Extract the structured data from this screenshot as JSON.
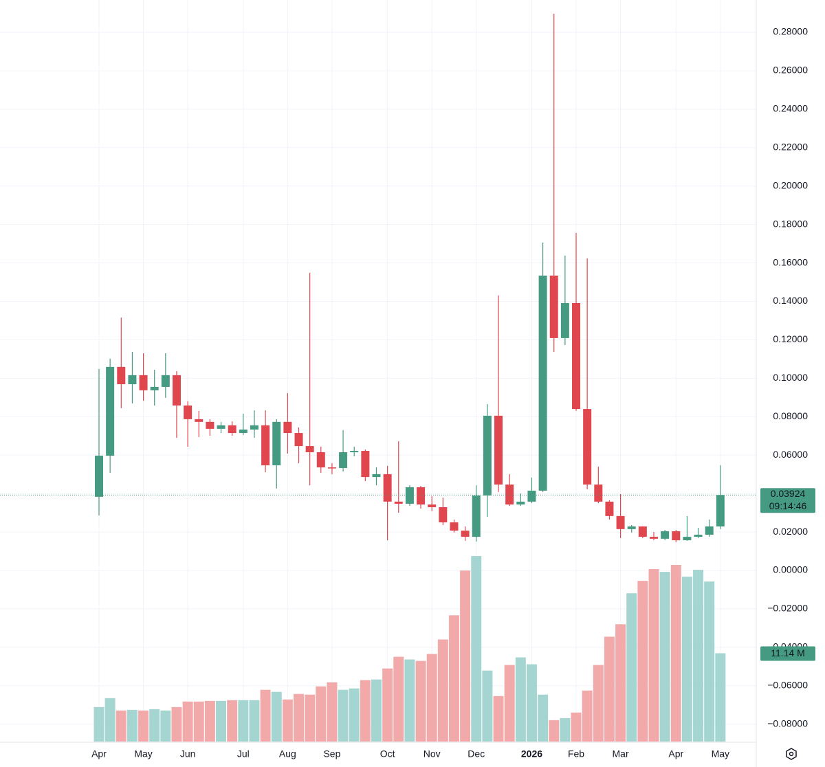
{
  "chart_data": {
    "type": "candlestick",
    "categories": [
      "Apr",
      null,
      null,
      null,
      "May",
      null,
      null,
      null,
      "Jun",
      null,
      null,
      null,
      null,
      "Jul",
      null,
      null,
      null,
      "Aug",
      null,
      null,
      null,
      "Sep",
      null,
      null,
      null,
      null,
      "Oct",
      null,
      null,
      null,
      "Nov",
      null,
      null,
      null,
      "Dec",
      null,
      null,
      null,
      null,
      "2026",
      null,
      null,
      null,
      "Feb",
      null,
      null,
      null,
      "Mar",
      null,
      null,
      null,
      null,
      "Apr",
      null,
      null,
      null,
      "May"
    ],
    "open": [
      0.0383,
      0.0597,
      0.1059,
      0.0969,
      0.1016,
      0.0937,
      0.0955,
      0.1016,
      0.0858,
      0.0787,
      0.0773,
      0.0737,
      0.0755,
      0.0715,
      0.0733,
      0.0755,
      0.0547,
      0.0773,
      0.0715,
      0.0647,
      0.0615,
      0.0536,
      0.0533,
      0.0615,
      0.0622,
      0.0486,
      0.0501,
      0.0358,
      0.0347,
      0.0433,
      0.0343,
      0.0329,
      0.025,
      0.0207,
      0.0175,
      0.039,
      0.0805,
      0.0447,
      0.0343,
      0.0358,
      0.0415,
      0.1534,
      0.1209,
      0.1391,
      0.084,
      0.0447,
      0.0358,
      0.0283,
      0.0215,
      0.0229,
      0.0175,
      0.0165,
      0.0204,
      0.0157,
      0.0175,
      0.0186,
      0.0229
    ],
    "high": [
      0.1048,
      0.1102,
      0.1316,
      0.1137,
      0.113,
      0.1044,
      0.113,
      0.1037,
      0.088,
      0.083,
      0.0787,
      0.0773,
      0.0776,
      0.0815,
      0.0833,
      0.0833,
      0.0787,
      0.0923,
      0.0744,
      0.1549,
      0.0644,
      0.0558,
      0.073,
      0.0644,
      0.0629,
      0.0536,
      0.0544,
      0.0672,
      0.0443,
      0.044,
      0.0386,
      0.0379,
      0.0265,
      0.0229,
      0.0443,
      0.0866,
      0.1431,
      0.0501,
      0.0401,
      0.0483,
      0.1706,
      0.2897,
      0.1638,
      0.1756,
      0.1624,
      0.054,
      0.0365,
      0.0397,
      0.0236,
      0.0229,
      0.02,
      0.0211,
      0.0211,
      0.0283,
      0.0222,
      0.0265,
      0.0547
    ],
    "low": [
      0.0286,
      0.0508,
      0.0844,
      0.0869,
      0.0883,
      0.0858,
      0.0898,
      0.069,
      0.0644,
      0.0694,
      0.0701,
      0.0715,
      0.0701,
      0.0705,
      0.069,
      0.0511,
      0.0426,
      0.0608,
      0.0558,
      0.0443,
      0.0508,
      0.0501,
      0.0515,
      0.0594,
      0.0465,
      0.0443,
      0.0157,
      0.03,
      0.0336,
      0.0322,
      0.0308,
      0.0236,
      0.0197,
      0.0154,
      0.015,
      0.0279,
      0.0408,
      0.0336,
      0.0336,
      0.035,
      0.0408,
      0.1137,
      0.1173,
      0.083,
      0.0422,
      0.035,
      0.0265,
      0.0168,
      0.0197,
      0.0168,
      0.0157,
      0.0157,
      0.0147,
      0.0154,
      0.0168,
      0.0175,
      0.0215
    ],
    "close": [
      0.0597,
      0.1059,
      0.0969,
      0.1016,
      0.0937,
      0.0955,
      0.1016,
      0.0858,
      0.0787,
      0.0773,
      0.0737,
      0.0755,
      0.0715,
      0.0733,
      0.0755,
      0.0547,
      0.0773,
      0.0715,
      0.0647,
      0.0615,
      0.0536,
      0.0533,
      0.0615,
      0.0622,
      0.0486,
      0.0501,
      0.0358,
      0.0347,
      0.0433,
      0.0343,
      0.0329,
      0.025,
      0.0207,
      0.0175,
      0.039,
      0.0805,
      0.0447,
      0.0343,
      0.0358,
      0.0415,
      0.1534,
      0.1209,
      0.1391,
      0.084,
      0.0447,
      0.0358,
      0.0283,
      0.0215,
      0.0229,
      0.0175,
      0.0165,
      0.0204,
      0.0157,
      0.0175,
      0.0186,
      0.0229,
      0.03924
    ],
    "volume": {
      "values": [
        4.35,
        5.48,
        3.92,
        4.0,
        3.92,
        4.09,
        3.92,
        4.35,
        5.05,
        5.05,
        5.13,
        5.13,
        5.22,
        5.22,
        5.22,
        6.53,
        6.27,
        5.31,
        6.01,
        5.92,
        6.96,
        7.48,
        6.53,
        6.7,
        7.75,
        7.83,
        9.22,
        10.7,
        10.36,
        10.18,
        11.05,
        12.88,
        15.93,
        21.58,
        23.41,
        8.96,
        5.74,
        9.66,
        10.62,
        9.75,
        5.92,
        2.7,
        2.96,
        3.66,
        6.44,
        9.66,
        13.23,
        14.8,
        18.71,
        20.28,
        21.76,
        21.41,
        22.28,
        20.8,
        21.67,
        20.19,
        11.14
      ],
      "last_label": "11.14 M",
      "up_color": "#a5d5d0",
      "down_color": "#f1aaa9"
    },
    "countdown": "09:14:46",
    "up_color": "#459a82",
    "down_color": "#e0464e",
    "ylim": [
      -0.0894,
      0.2968
    ],
    "yticks": [
      {
        "value": 0.28,
        "label": "0.28000"
      },
      {
        "value": 0.26,
        "label": "0.26000"
      },
      {
        "value": 0.24,
        "label": "0.24000"
      },
      {
        "value": 0.22,
        "label": "0.22000"
      },
      {
        "value": 0.2,
        "label": "0.20000"
      },
      {
        "value": 0.18,
        "label": "0.18000"
      },
      {
        "value": 0.16,
        "label": "0.16000"
      },
      {
        "value": 0.14,
        "label": "0.14000"
      },
      {
        "value": 0.12,
        "label": "0.12000"
      },
      {
        "value": 0.1,
        "label": "0.10000"
      },
      {
        "value": 0.08,
        "label": "0.08000"
      },
      {
        "value": 0.06,
        "label": "0.06000"
      },
      {
        "value": 0.04,
        "label": "0.04000"
      },
      {
        "value": 0.02,
        "label": "0.02000"
      },
      {
        "value": 0,
        "label": "0.00000"
      },
      {
        "value": -0.02,
        "label": "−0.02000"
      },
      {
        "value": -0.04,
        "label": "−0.04000"
      },
      {
        "value": -0.06,
        "label": "−0.06000"
      },
      {
        "value": -0.08,
        "label": "−0.08000"
      }
    ],
    "grid": true
  }
}
